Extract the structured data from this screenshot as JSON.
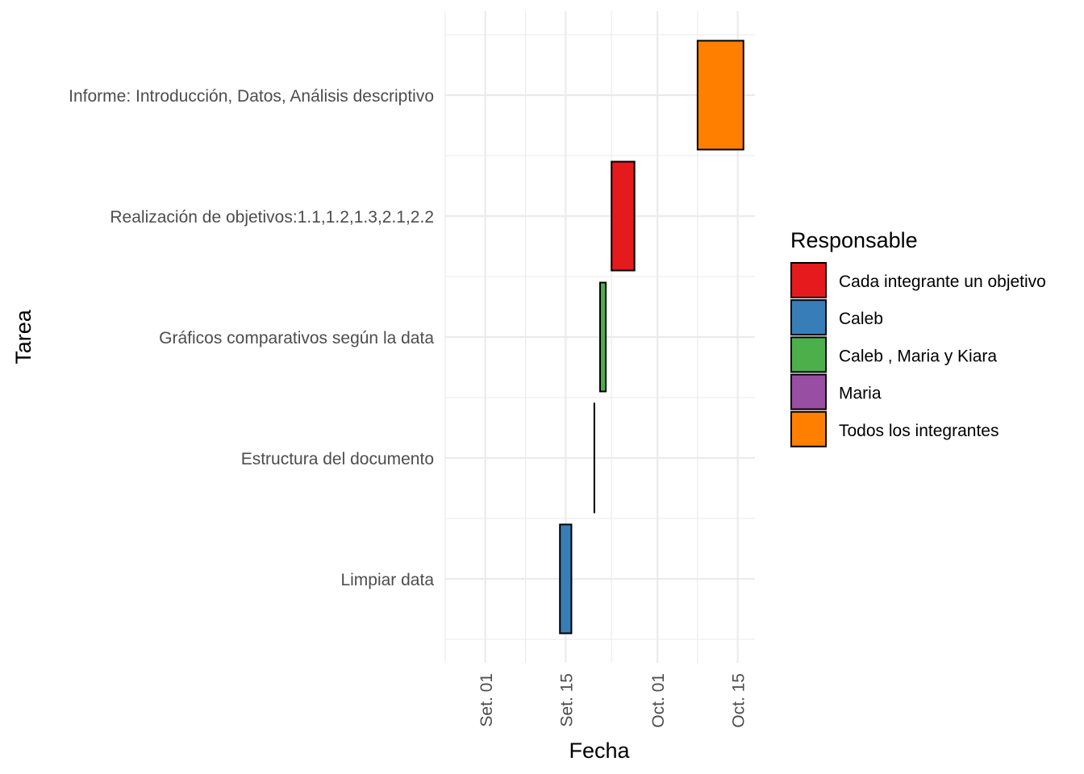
{
  "chart_data": {
    "type": "gantt",
    "xlabel": "Fecha",
    "ylabel": "Tarea",
    "x_ticks": [
      {
        "date": "2023-09-01",
        "label": "Set. 01"
      },
      {
        "date": "2023-09-15",
        "label": "Set. 15"
      },
      {
        "date": "2023-10-01",
        "label": "Oct. 01"
      },
      {
        "date": "2023-10-15",
        "label": "Oct. 15"
      }
    ],
    "x_range": [
      "2023-08-25",
      "2023-10-18"
    ],
    "tasks": [
      {
        "task": "Limpiar data",
        "start": "2023-09-14",
        "end": "2023-09-16",
        "responsable": "Caleb"
      },
      {
        "task": "Estructura del documento",
        "start": "2023-09-20",
        "end": "2023-09-20",
        "responsable": "Maria"
      },
      {
        "task": "Gráficos comparativos según la data",
        "start": "2023-09-21",
        "end": "2023-09-22",
        "responsable": "Caleb , Maria y Kiara"
      },
      {
        "task": "Realización de objetivos:1.1,1.2,1.3,2.1,2.2",
        "start": "2023-09-23",
        "end": "2023-09-27",
        "responsable": "Cada integrante un objetivo"
      },
      {
        "task": "Informe: Introducción, Datos, Análisis descriptivo",
        "start": "2023-10-08",
        "end": "2023-10-16",
        "responsable": "Todos los integrantes"
      }
    ],
    "legend": {
      "title": "Responsable",
      "position": "right",
      "items": [
        {
          "label": "Cada integrante un objetivo",
          "color": "#e41a1c"
        },
        {
          "label": "Caleb",
          "color": "#377eb8"
        },
        {
          "label": "Caleb , Maria y Kiara",
          "color": "#4daf4a"
        },
        {
          "label": "Maria",
          "color": "#984ea3"
        },
        {
          "label": "Todos los integrantes",
          "color": "#ff7f00"
        }
      ]
    },
    "grid": true
  }
}
